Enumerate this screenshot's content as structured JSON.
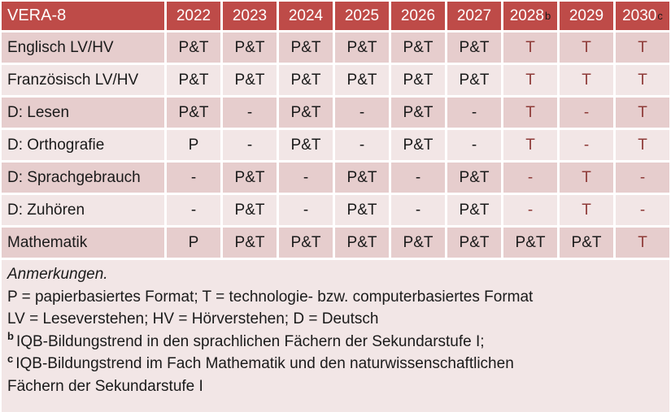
{
  "table": {
    "title": "VERA-8",
    "columns": [
      {
        "label": "2022",
        "sup": ""
      },
      {
        "label": "2023",
        "sup": ""
      },
      {
        "label": "2024",
        "sup": ""
      },
      {
        "label": "2025",
        "sup": ""
      },
      {
        "label": "2026",
        "sup": ""
      },
      {
        "label": "2027",
        "sup": ""
      },
      {
        "label": "2028",
        "sup": "b"
      },
      {
        "label": "2029",
        "sup": ""
      },
      {
        "label": "2030",
        "sup": "c"
      }
    ],
    "rows": [
      {
        "label": "Englisch LV/HV",
        "cells": [
          {
            "t": "P&T"
          },
          {
            "t": "P&T"
          },
          {
            "t": "P&T"
          },
          {
            "t": "P&T"
          },
          {
            "t": "P&T"
          },
          {
            "t": "P&T"
          },
          {
            "t": "T",
            "red": true
          },
          {
            "t": "T",
            "red": true
          },
          {
            "t": "T",
            "red": true
          }
        ]
      },
      {
        "label": "Französisch LV/HV",
        "cells": [
          {
            "t": "P&T"
          },
          {
            "t": "P&T"
          },
          {
            "t": "P&T"
          },
          {
            "t": "P&T"
          },
          {
            "t": "P&T"
          },
          {
            "t": "P&T"
          },
          {
            "t": "T",
            "red": true
          },
          {
            "t": "T",
            "red": true
          },
          {
            "t": "T",
            "red": true
          }
        ]
      },
      {
        "label": "D: Lesen",
        "cells": [
          {
            "t": "P&T"
          },
          {
            "t": "-"
          },
          {
            "t": "P&T"
          },
          {
            "t": "-"
          },
          {
            "t": "P&T"
          },
          {
            "t": "-"
          },
          {
            "t": "T",
            "red": true
          },
          {
            "t": "-",
            "red": true
          },
          {
            "t": "T",
            "red": true
          }
        ]
      },
      {
        "label": "D: Orthografie",
        "cells": [
          {
            "t": "P"
          },
          {
            "t": "-"
          },
          {
            "t": "P&T"
          },
          {
            "t": "-"
          },
          {
            "t": "P&T"
          },
          {
            "t": "-"
          },
          {
            "t": "T",
            "red": true
          },
          {
            "t": "-",
            "red": true
          },
          {
            "t": "T",
            "red": true
          }
        ]
      },
      {
        "label": "D: Sprachgebrauch",
        "cells": [
          {
            "t": "-"
          },
          {
            "t": "P&T"
          },
          {
            "t": "-"
          },
          {
            "t": "P&T"
          },
          {
            "t": "-"
          },
          {
            "t": "P&T"
          },
          {
            "t": "-",
            "red": true
          },
          {
            "t": "T",
            "red": true
          },
          {
            "t": "-",
            "red": true
          }
        ]
      },
      {
        "label": "D: Zuhören",
        "cells": [
          {
            "t": "-"
          },
          {
            "t": "P&T"
          },
          {
            "t": "-"
          },
          {
            "t": "P&T"
          },
          {
            "t": "-"
          },
          {
            "t": "P&T"
          },
          {
            "t": "-",
            "red": true
          },
          {
            "t": "T",
            "red": true
          },
          {
            "t": "-",
            "red": true
          }
        ]
      },
      {
        "label": "Mathematik",
        "cells": [
          {
            "t": "P"
          },
          {
            "t": "P&T"
          },
          {
            "t": "P&T"
          },
          {
            "t": "P&T"
          },
          {
            "t": "P&T"
          },
          {
            "t": "P&T"
          },
          {
            "t": "P&T"
          },
          {
            "t": "P&T"
          },
          {
            "t": "T",
            "red": true
          }
        ]
      }
    ]
  },
  "notes": {
    "heading": "Anmerkungen.",
    "lines": [
      {
        "sup": "",
        "text": "P = papierbasiertes Format; T = technologie- bzw. computerbasiertes Format"
      },
      {
        "sup": "",
        "text": "LV = Leseverstehen; HV = Hörverstehen; D = Deutsch"
      },
      {
        "sup": "b",
        "text": "IQB-Bildungstrend in den sprachlichen Fächern der Sekundarstufe I;"
      },
      {
        "sup": "c",
        "text": "IQB-Bildungstrend im Fach Mathematik und den naturwissenschaftlichen"
      },
      {
        "sup": "",
        "text": "Fächern der Sekundarstufe I"
      }
    ]
  },
  "colors": {
    "header_bg": "#be4b48",
    "row_dark": "#e6cdcd",
    "row_light": "#f2e6e6",
    "accent_text": "#8e3b38",
    "text": "#1a1a1a"
  }
}
